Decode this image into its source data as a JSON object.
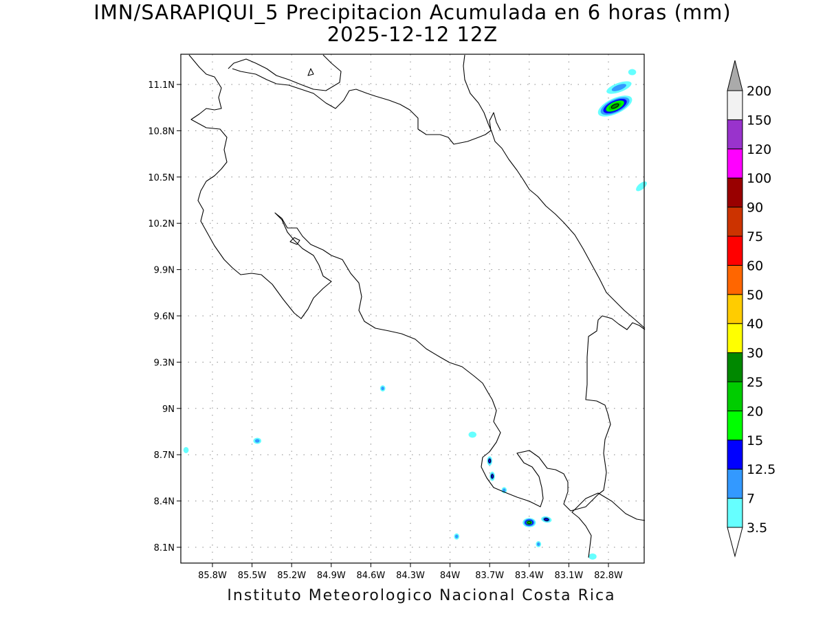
{
  "title_line1": "IMN/SARAPIQUI_5 Precipitacion Acumulada en 6 horas (mm)",
  "title_line2": "2025-12-12 12Z",
  "credit": "Instituto Meteorologico Nacional Costa Rica",
  "axes": {
    "lon_ticks": [
      {
        "value": -85.8,
        "label": "85.8W"
      },
      {
        "value": -85.5,
        "label": "85.5W"
      },
      {
        "value": -85.2,
        "label": "85.2W"
      },
      {
        "value": -84.9,
        "label": "84.9W"
      },
      {
        "value": -84.6,
        "label": "84.6W"
      },
      {
        "value": -84.3,
        "label": "84.3W"
      },
      {
        "value": -84.0,
        "label": "84W"
      },
      {
        "value": -83.7,
        "label": "83.7W"
      },
      {
        "value": -83.4,
        "label": "83.4W"
      },
      {
        "value": -83.1,
        "label": "83.1W"
      },
      {
        "value": -82.8,
        "label": "82.8W"
      }
    ],
    "lat_ticks": [
      {
        "value": 11.1,
        "label": "11.1N"
      },
      {
        "value": 10.8,
        "label": "10.8N"
      },
      {
        "value": 10.5,
        "label": "10.5N"
      },
      {
        "value": 10.2,
        "label": "10.2N"
      },
      {
        "value": 9.9,
        "label": "9.9N"
      },
      {
        "value": 9.6,
        "label": "9.6N"
      },
      {
        "value": 9.3,
        "label": "9.3N"
      },
      {
        "value": 9.0,
        "label": "9N"
      },
      {
        "value": 8.7,
        "label": "8.7N"
      },
      {
        "value": 8.4,
        "label": "8.4N"
      },
      {
        "value": 8.1,
        "label": "8.1N"
      }
    ],
    "grid": true
  },
  "colorbar": {
    "levels": [
      {
        "label": "3.5",
        "color": "#66ffff"
      },
      {
        "label": "7",
        "color": "#3399ff"
      },
      {
        "label": "12.5",
        "color": "#0000ff"
      },
      {
        "label": "15",
        "color": "#00ff00"
      },
      {
        "label": "20",
        "color": "#00cc00"
      },
      {
        "label": "25",
        "color": "#008800"
      },
      {
        "label": "30",
        "color": "#ffff00"
      },
      {
        "label": "40",
        "color": "#ffcc00"
      },
      {
        "label": "50",
        "color": "#ff6600"
      },
      {
        "label": "60",
        "color": "#ff0000"
      },
      {
        "label": "75",
        "color": "#cc3300"
      },
      {
        "label": "90",
        "color": "#990000"
      },
      {
        "label": "100",
        "color": "#ff00ff"
      },
      {
        "label": "120",
        "color": "#9933cc"
      },
      {
        "label": "150",
        "color": "#f2f2f2"
      },
      {
        "label": "200",
        "color": "#aaaaaa"
      }
    ],
    "under_color": "#ffffff",
    "over_color": "#aaaaaa"
  },
  "precip_cells": [
    {
      "lon": -82.75,
      "lat": 10.96,
      "rx": 0.14,
      "ry": 0.05,
      "tilt": -25,
      "max_level": 5
    },
    {
      "lon": -82.72,
      "lat": 11.08,
      "rx": 0.1,
      "ry": 0.03,
      "tilt": -20,
      "max_level": 1
    },
    {
      "lon": -82.62,
      "lat": 11.18,
      "rx": 0.03,
      "ry": 0.02,
      "tilt": 0,
      "max_level": 0
    },
    {
      "lon": -82.55,
      "lat": 10.44,
      "rx": 0.05,
      "ry": 0.02,
      "tilt": -40,
      "max_level": 0
    },
    {
      "lon": -85.46,
      "lat": 8.79,
      "rx": 0.03,
      "ry": 0.02,
      "tilt": 0,
      "max_level": 1
    },
    {
      "lon": -84.51,
      "lat": 9.13,
      "rx": 0.02,
      "ry": 0.02,
      "tilt": 0,
      "max_level": 1
    },
    {
      "lon": -86.0,
      "lat": 8.73,
      "rx": 0.02,
      "ry": 0.02,
      "tilt": 0,
      "max_level": 0
    },
    {
      "lon": -83.83,
      "lat": 8.83,
      "rx": 0.03,
      "ry": 0.02,
      "tilt": 0,
      "max_level": 0
    },
    {
      "lon": -83.7,
      "lat": 8.66,
      "rx": 0.02,
      "ry": 0.03,
      "tilt": 0,
      "max_level": 2
    },
    {
      "lon": -83.68,
      "lat": 8.56,
      "rx": 0.02,
      "ry": 0.03,
      "tilt": 0,
      "max_level": 2
    },
    {
      "lon": -83.59,
      "lat": 8.47,
      "rx": 0.02,
      "ry": 0.02,
      "tilt": 0,
      "max_level": 1
    },
    {
      "lon": -83.4,
      "lat": 8.26,
      "rx": 0.05,
      "ry": 0.03,
      "tilt": 0,
      "max_level": 4
    },
    {
      "lon": -83.27,
      "lat": 8.28,
      "rx": 0.04,
      "ry": 0.02,
      "tilt": 10,
      "max_level": 2
    },
    {
      "lon": -83.33,
      "lat": 8.12,
      "rx": 0.02,
      "ry": 0.02,
      "tilt": 0,
      "max_level": 1
    },
    {
      "lon": -83.95,
      "lat": 8.17,
      "rx": 0.02,
      "ry": 0.02,
      "tilt": 0,
      "max_level": 1
    },
    {
      "lon": -82.92,
      "lat": 8.04,
      "rx": 0.03,
      "ry": 0.02,
      "tilt": 0,
      "max_level": 0
    }
  ]
}
